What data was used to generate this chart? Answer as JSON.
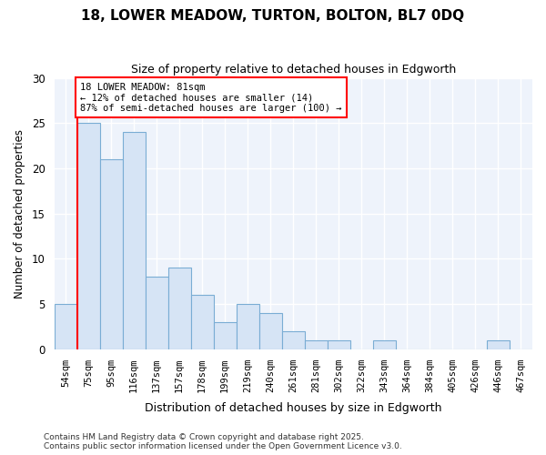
{
  "title": "18, LOWER MEADOW, TURTON, BOLTON, BL7 0DQ",
  "subtitle": "Size of property relative to detached houses in Edgworth",
  "xlabel": "Distribution of detached houses by size in Edgworth",
  "ylabel": "Number of detached properties",
  "categories": [
    "54sqm",
    "75sqm",
    "95sqm",
    "116sqm",
    "137sqm",
    "157sqm",
    "178sqm",
    "199sqm",
    "219sqm",
    "240sqm",
    "261sqm",
    "281sqm",
    "302sqm",
    "322sqm",
    "343sqm",
    "364sqm",
    "384sqm",
    "405sqm",
    "426sqm",
    "446sqm",
    "467sqm"
  ],
  "values": [
    5,
    25,
    21,
    24,
    8,
    9,
    6,
    3,
    5,
    4,
    2,
    1,
    1,
    0,
    1,
    0,
    0,
    0,
    0,
    1,
    0
  ],
  "bar_color": "#d6e4f5",
  "bar_edge_color": "#7aadd4",
  "red_line_index": 1,
  "annotation_title": "18 LOWER MEADOW: 81sqm",
  "annotation_line1": "← 12% of detached houses are smaller (14)",
  "annotation_line2": "87% of semi-detached houses are larger (100) →",
  "ylim": [
    0,
    30
  ],
  "yticks": [
    0,
    5,
    10,
    15,
    20,
    25,
    30
  ],
  "background_color": "#ffffff",
  "plot_bg_color": "#eef3fb",
  "grid_color": "#ffffff",
  "footer": "Contains HM Land Registry data © Crown copyright and database right 2025.\nContains public sector information licensed under the Open Government Licence v3.0."
}
